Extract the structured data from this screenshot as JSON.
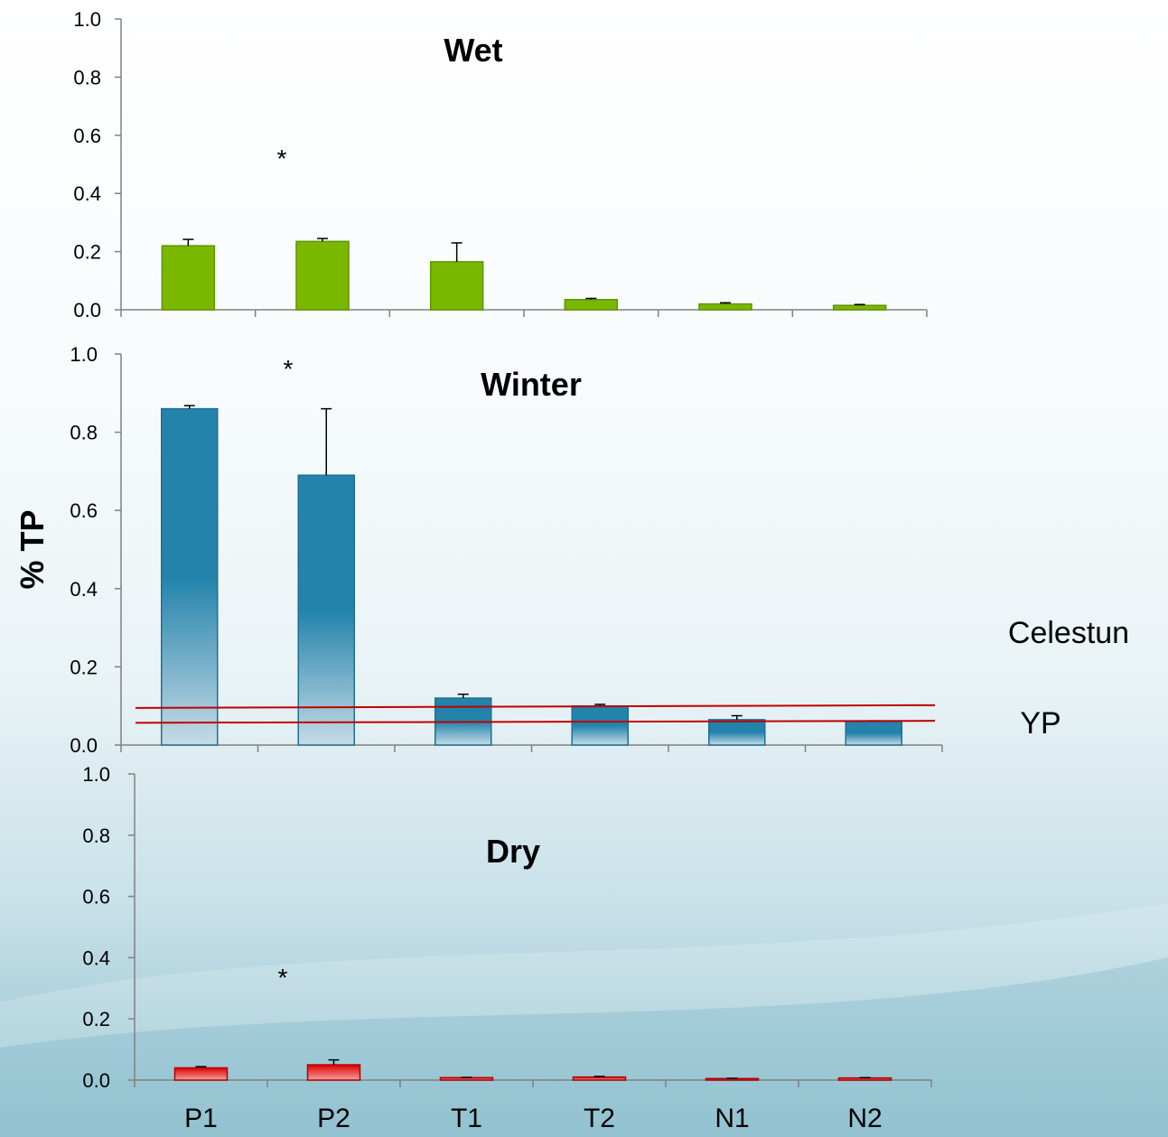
{
  "chart_data": [
    {
      "type": "bar",
      "title": "Wet",
      "categories": [
        "P1",
        "P2",
        "T1",
        "T2",
        "N1",
        "N2"
      ],
      "values": [
        0.22,
        0.235,
        0.165,
        0.035,
        0.02,
        0.015
      ],
      "errors": [
        0.022,
        0.01,
        0.065,
        0.004,
        0.004,
        0.003
      ],
      "ylim": [
        0,
        1.0
      ],
      "yticks": [
        "0.0",
        "0.2",
        "0.4",
        "0.6",
        "0.8",
        "1.0"
      ],
      "annotation": "*",
      "color": "#7ab800"
    },
    {
      "type": "bar",
      "title": "Winter",
      "categories": [
        "P1",
        "P2",
        "T1",
        "T2",
        "N1",
        "N2"
      ],
      "values": [
        0.86,
        0.69,
        0.12,
        0.1,
        0.065,
        0.06
      ],
      "errors": [
        0.008,
        0.17,
        0.01,
        0.004,
        0.01,
        0.002
      ],
      "ylim": [
        0,
        1.0
      ],
      "yticks": [
        "0.0",
        "0.2",
        "0.4",
        "0.6",
        "0.8",
        "1.0"
      ],
      "ylabel": "% TP",
      "annotation": "*",
      "color": "#2383ab",
      "reference_lines": [
        {
          "label": "Celestun",
          "y_start": 0.095,
          "y_end": 0.102
        },
        {
          "label": "YP",
          "y_start": 0.057,
          "y_end": 0.062
        }
      ]
    },
    {
      "type": "bar",
      "title": "Dry",
      "categories": [
        "P1",
        "P2",
        "T1",
        "T2",
        "N1",
        "N2"
      ],
      "values": [
        0.04,
        0.05,
        0.008,
        0.01,
        0.005,
        0.007
      ],
      "errors": [
        0.004,
        0.016,
        0.001,
        0.002,
        0.001,
        0.001
      ],
      "ylim": [
        0,
        1.0
      ],
      "yticks": [
        "0.0",
        "0.2",
        "0.4",
        "0.6",
        "0.8",
        "1.0"
      ],
      "annotation": "*",
      "color": "#dd0000"
    }
  ]
}
